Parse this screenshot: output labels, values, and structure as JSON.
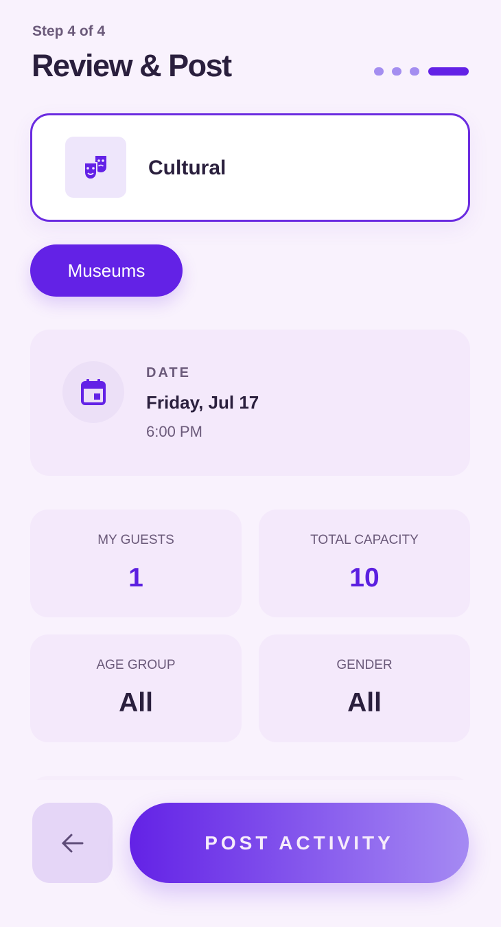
{
  "header": {
    "step": "Step 4 of 4",
    "title": "Review & Post",
    "progress": {
      "current_step": 4,
      "total_steps": 4
    }
  },
  "category": {
    "label": "Cultural",
    "icon": "theater-masks-icon"
  },
  "subcategory": {
    "label": "Museums"
  },
  "date": {
    "label": "DATE",
    "value": "Friday, Jul 17",
    "time": "6:00 PM",
    "icon": "calendar-icon"
  },
  "stats": [
    {
      "label": "MY GUESTS",
      "value": "1"
    },
    {
      "label": "TOTAL CAPACITY",
      "value": "10"
    },
    {
      "label": "AGE GROUP",
      "value": "All"
    },
    {
      "label": "GENDER",
      "value": "All"
    }
  ],
  "footer": {
    "back_icon": "arrow-left-icon",
    "post_label": "POST ACTIVITY"
  },
  "colors": {
    "accent": "#6322e6",
    "text": "#2a1f3d",
    "muted": "#6b5a7a",
    "card": "#f4e9fb"
  }
}
